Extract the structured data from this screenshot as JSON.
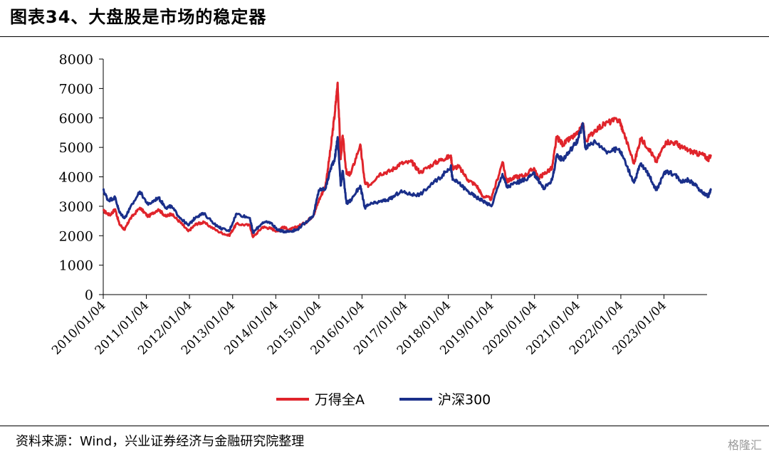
{
  "title": "图表34、大盘股是市场的稳定器",
  "source": "资料来源：Wind，兴业证券经济与金融研究院整理",
  "watermark": "格隆汇",
  "chart_data": {
    "type": "line",
    "ylim": [
      0,
      8000
    ],
    "yticks": [
      0,
      1000,
      2000,
      3000,
      4000,
      5000,
      6000,
      7000,
      8000
    ],
    "xlim": [
      "2010-01-04",
      "2024-01-04"
    ],
    "xticks": [
      "2010/01/04",
      "2011/01/04",
      "2012/01/04",
      "2013/01/04",
      "2014/01/04",
      "2015/01/04",
      "2016/01/04",
      "2017/01/04",
      "2018/01/04",
      "2019/01/04",
      "2020/01/04",
      "2021/01/04",
      "2022/01/04",
      "2023/01/04"
    ],
    "legend_position": "bottom-center",
    "series": [
      {
        "name": "万得全A",
        "color": "#e0242b",
        "points": [
          [
            "2010-01-04",
            2850
          ],
          [
            "2010-03-01",
            2700
          ],
          [
            "2010-04-15",
            2900
          ],
          [
            "2010-05-20",
            2400
          ],
          [
            "2010-07-05",
            2200
          ],
          [
            "2010-08-15",
            2550
          ],
          [
            "2010-11-10",
            2950
          ],
          [
            "2011-01-20",
            2650
          ],
          [
            "2011-04-15",
            2900
          ],
          [
            "2011-06-20",
            2650
          ],
          [
            "2011-08-01",
            2750
          ],
          [
            "2011-10-20",
            2450
          ],
          [
            "2011-12-25",
            2150
          ],
          [
            "2012-03-01",
            2400
          ],
          [
            "2012-05-05",
            2450
          ],
          [
            "2012-09-01",
            2150
          ],
          [
            "2012-12-04",
            2000
          ],
          [
            "2013-02-05",
            2400
          ],
          [
            "2013-05-30",
            2350
          ],
          [
            "2013-06-25",
            1950
          ],
          [
            "2013-09-15",
            2300
          ],
          [
            "2013-11-20",
            2250
          ],
          [
            "2014-01-20",
            2150
          ],
          [
            "2014-03-01",
            2300
          ],
          [
            "2014-05-01",
            2200
          ],
          [
            "2014-07-01",
            2300
          ],
          [
            "2014-09-15",
            2450
          ],
          [
            "2014-11-20",
            2700
          ],
          [
            "2015-01-04",
            3200
          ],
          [
            "2015-03-01",
            3700
          ],
          [
            "2015-04-15",
            5000
          ],
          [
            "2015-05-20",
            6200
          ],
          [
            "2015-06-12",
            7200
          ],
          [
            "2015-07-08",
            4600
          ],
          [
            "2015-07-25",
            5400
          ],
          [
            "2015-08-26",
            4100
          ],
          [
            "2015-10-01",
            4100
          ],
          [
            "2015-12-20",
            5100
          ],
          [
            "2016-01-28",
            3800
          ],
          [
            "2016-03-01",
            3700
          ],
          [
            "2016-06-01",
            4100
          ],
          [
            "2016-09-01",
            4200
          ],
          [
            "2016-11-25",
            4450
          ],
          [
            "2017-03-01",
            4500
          ],
          [
            "2017-05-10",
            4150
          ],
          [
            "2017-09-01",
            4450
          ],
          [
            "2017-11-15",
            4600
          ],
          [
            "2018-01-25",
            4700
          ],
          [
            "2018-02-10",
            4300
          ],
          [
            "2018-04-01",
            4350
          ],
          [
            "2018-06-20",
            3900
          ],
          [
            "2018-09-01",
            3700
          ],
          [
            "2018-10-20",
            3350
          ],
          [
            "2019-01-04",
            3250
          ],
          [
            "2019-04-08",
            4500
          ],
          [
            "2019-05-15",
            3850
          ],
          [
            "2019-08-01",
            4000
          ],
          [
            "2019-10-15",
            4050
          ],
          [
            "2019-12-31",
            4300
          ],
          [
            "2020-02-03",
            3950
          ],
          [
            "2020-03-23",
            4100
          ],
          [
            "2020-06-01",
            4300
          ],
          [
            "2020-07-10",
            5350
          ],
          [
            "2020-09-01",
            5100
          ],
          [
            "2020-11-01",
            5300
          ],
          [
            "2021-01-04",
            5450
          ],
          [
            "2021-02-18",
            5800
          ],
          [
            "2021-03-09",
            5200
          ],
          [
            "2021-06-01",
            5600
          ],
          [
            "2021-09-15",
            5850
          ],
          [
            "2021-12-20",
            5950
          ],
          [
            "2022-01-20",
            5600
          ],
          [
            "2022-04-26",
            4450
          ],
          [
            "2022-06-20",
            5300
          ],
          [
            "2022-09-01",
            4950
          ],
          [
            "2022-10-31",
            4500
          ],
          [
            "2023-01-20",
            5200
          ],
          [
            "2023-04-15",
            5150
          ],
          [
            "2023-06-01",
            5000
          ],
          [
            "2023-08-01",
            4900
          ],
          [
            "2023-10-01",
            4800
          ],
          [
            "2023-12-01",
            4750
          ],
          [
            "2024-01-15",
            4600
          ],
          [
            "2024-02-05",
            4750
          ]
        ]
      },
      {
        "name": "沪深300",
        "color": "#1a2f8a",
        "points": [
          [
            "2010-01-04",
            3550
          ],
          [
            "2010-02-15",
            3200
          ],
          [
            "2010-04-15",
            3300
          ],
          [
            "2010-05-20",
            2800
          ],
          [
            "2010-07-05",
            2600
          ],
          [
            "2010-08-15",
            2900
          ],
          [
            "2010-11-10",
            3500
          ],
          [
            "2011-01-20",
            3050
          ],
          [
            "2011-04-15",
            3300
          ],
          [
            "2011-06-20",
            2950
          ],
          [
            "2011-08-01",
            3000
          ],
          [
            "2011-10-20",
            2600
          ],
          [
            "2011-12-25",
            2350
          ],
          [
            "2012-03-01",
            2650
          ],
          [
            "2012-05-05",
            2750
          ],
          [
            "2012-09-01",
            2300
          ],
          [
            "2012-12-04",
            2150
          ],
          [
            "2013-02-05",
            2750
          ],
          [
            "2013-05-30",
            2600
          ],
          [
            "2013-06-25",
            2100
          ],
          [
            "2013-09-15",
            2450
          ],
          [
            "2013-11-20",
            2450
          ],
          [
            "2014-01-20",
            2200
          ],
          [
            "2014-03-01",
            2150
          ],
          [
            "2014-05-01",
            2150
          ],
          [
            "2014-07-01",
            2200
          ],
          [
            "2014-09-15",
            2450
          ],
          [
            "2014-11-20",
            2700
          ],
          [
            "2015-01-04",
            3550
          ],
          [
            "2015-03-01",
            3600
          ],
          [
            "2015-04-15",
            4300
          ],
          [
            "2015-05-20",
            4650
          ],
          [
            "2015-06-12",
            5350
          ],
          [
            "2015-07-08",
            3700
          ],
          [
            "2015-07-25",
            4200
          ],
          [
            "2015-08-26",
            3100
          ],
          [
            "2015-10-01",
            3200
          ],
          [
            "2015-12-20",
            3700
          ],
          [
            "2016-01-28",
            2950
          ],
          [
            "2016-03-01",
            3050
          ],
          [
            "2016-06-01",
            3150
          ],
          [
            "2016-09-01",
            3250
          ],
          [
            "2016-11-25",
            3500
          ],
          [
            "2017-03-01",
            3400
          ],
          [
            "2017-05-10",
            3400
          ],
          [
            "2017-09-01",
            3800
          ],
          [
            "2017-11-15",
            4050
          ],
          [
            "2018-01-25",
            4350
          ],
          [
            "2018-02-10",
            3900
          ],
          [
            "2018-04-01",
            3800
          ],
          [
            "2018-06-20",
            3500
          ],
          [
            "2018-09-01",
            3300
          ],
          [
            "2018-10-20",
            3200
          ],
          [
            "2019-01-04",
            3000
          ],
          [
            "2019-04-08",
            4100
          ],
          [
            "2019-05-15",
            3650
          ],
          [
            "2019-08-01",
            3800
          ],
          [
            "2019-10-15",
            3900
          ],
          [
            "2019-12-31",
            4100
          ],
          [
            "2020-02-03",
            3900
          ],
          [
            "2020-03-23",
            3600
          ],
          [
            "2020-06-01",
            3900
          ],
          [
            "2020-07-10",
            4700
          ],
          [
            "2020-09-01",
            4600
          ],
          [
            "2020-11-01",
            4900
          ],
          [
            "2021-01-04",
            5250
          ],
          [
            "2021-02-18",
            5800
          ],
          [
            "2021-03-09",
            5000
          ],
          [
            "2021-06-01",
            5200
          ],
          [
            "2021-09-15",
            4850
          ],
          [
            "2021-12-20",
            4950
          ],
          [
            "2022-01-20",
            4700
          ],
          [
            "2022-04-26",
            3800
          ],
          [
            "2022-06-20",
            4450
          ],
          [
            "2022-09-01",
            4050
          ],
          [
            "2022-10-31",
            3550
          ],
          [
            "2023-01-20",
            4200
          ],
          [
            "2023-04-15",
            4050
          ],
          [
            "2023-06-01",
            3850
          ],
          [
            "2023-08-01",
            3900
          ],
          [
            "2023-10-01",
            3700
          ],
          [
            "2023-12-01",
            3450
          ],
          [
            "2024-01-15",
            3350
          ],
          [
            "2024-02-05",
            3550
          ]
        ]
      }
    ]
  }
}
